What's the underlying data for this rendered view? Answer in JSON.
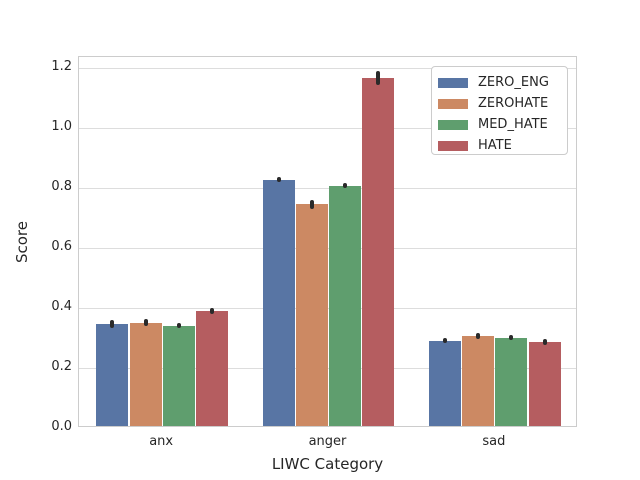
{
  "chart_data": {
    "type": "bar",
    "title": "",
    "xlabel": "LIWC Category",
    "ylabel": "Score",
    "categories": [
      "anx",
      "anger",
      "sad"
    ],
    "series": [
      {
        "name": "ZERO_ENG",
        "color": "#5875a4",
        "values": [
          0.34,
          0.82,
          0.285
        ],
        "errors": [
          0.012,
          0.008,
          0.007
        ]
      },
      {
        "name": "ZEROHATE",
        "color": "#cc8963",
        "values": [
          0.345,
          0.74,
          0.3
        ],
        "errors": [
          0.012,
          0.015,
          0.009
        ]
      },
      {
        "name": "MED_HATE",
        "color": "#5f9e6e",
        "values": [
          0.335,
          0.8,
          0.295
        ],
        "errors": [
          0.008,
          0.008,
          0.008
        ]
      },
      {
        "name": "HATE",
        "color": "#b55d60",
        "values": [
          0.385,
          1.16,
          0.28
        ],
        "errors": [
          0.01,
          0.022,
          0.01
        ]
      }
    ],
    "yticks": [
      0.0,
      0.2,
      0.4,
      0.6,
      0.8,
      1.0,
      1.2
    ],
    "ylim": [
      0,
      1.24
    ],
    "grid": true,
    "legend_position": "upper right",
    "error_bar_color": "#2a2a2a",
    "grid_color": "#dddddd",
    "spine_color": "#cccccc",
    "text_color": "#262626"
  }
}
